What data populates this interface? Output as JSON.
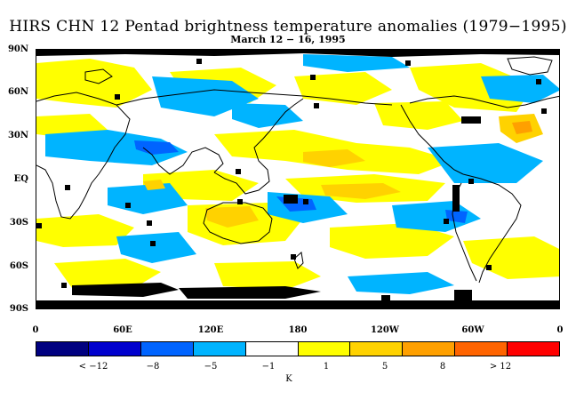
{
  "title": "HIRS CHN 12 Pentad brightness temperature anomalies (1979−1995)",
  "subtitle": "March 12 − 16, 1995",
  "map": {
    "projection": "equirectangular",
    "lon_range": [
      0,
      360
    ],
    "lat_range": [
      -90,
      90
    ],
    "lat_labels": [
      "90N",
      "60N",
      "30N",
      "EQ",
      "30S",
      "60S",
      "90S"
    ],
    "lon_labels": [
      "0",
      "60E",
      "120E",
      "180",
      "120W",
      "60W",
      "0"
    ],
    "missing_data_color": "#000000",
    "coastline_color": "#000000"
  },
  "colorbar": {
    "unit": "K",
    "colors": [
      "#000080",
      "#0000cd",
      "#0064ff",
      "#00b4ff",
      "#ffffff",
      "#ffff00",
      "#ffd200",
      "#ffa000",
      "#ff6400",
      "#ff0000"
    ],
    "tick_labels": [
      "< −12",
      "−8",
      "−5",
      "−1",
      "1",
      "5",
      "8",
      "> 12"
    ]
  }
}
